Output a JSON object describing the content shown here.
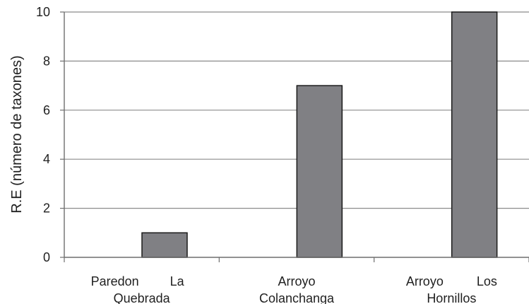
{
  "chart_data": {
    "type": "bar",
    "categories": [
      [
        "Paredon",
        "La",
        "Quebrada"
      ],
      [
        "Arroyo",
        "Colanchanga"
      ],
      [
        "Arroyo",
        "Los",
        "Hornillos"
      ]
    ],
    "values": [
      1,
      7,
      10
    ],
    "title": "",
    "xlabel": "",
    "ylabel": "R.E (número de taxones)",
    "ylim": [
      0,
      10
    ],
    "yticks": [
      0,
      2,
      4,
      6,
      8,
      10
    ],
    "grid": true,
    "legend": "none",
    "bar_color": "#808084",
    "bar_stroke": "#1a1a1a",
    "grid_color": "#8c8c8c",
    "axis_color": "#6f6f6f"
  }
}
